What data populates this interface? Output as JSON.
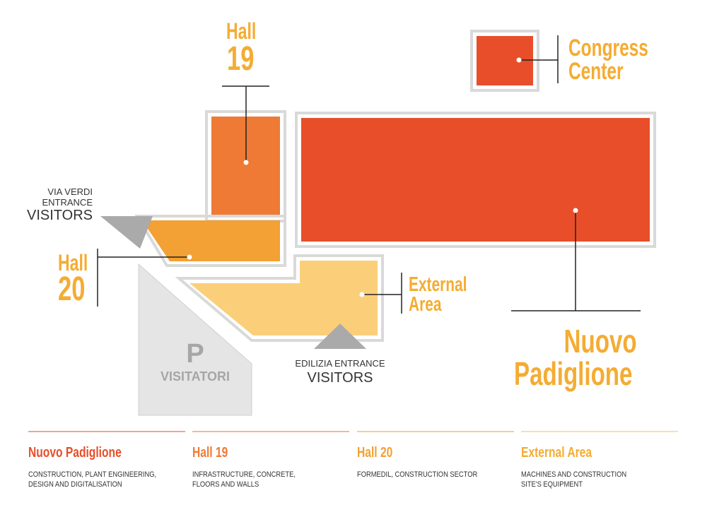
{
  "colors": {
    "nuovo": "#e84e2a",
    "hall19": "#ee7a35",
    "hall20": "#f3a034",
    "external": "#fbcf7a",
    "outline": "#d9d9d9",
    "parking": "#e5e5e5",
    "entrance": "#aaaaaa",
    "label_accent": "#f4ac32"
  },
  "map": {
    "hall19": {
      "line1": "Hall",
      "line2": "19"
    },
    "congress": {
      "line1": "Congress",
      "line2": "Center"
    },
    "hall20": {
      "line1": "Hall",
      "line2": "20"
    },
    "external": {
      "line1": "External",
      "line2": "Area"
    },
    "nuovo": {
      "line1": "Nuovo",
      "line2": "Padiglione"
    },
    "via_verdi": {
      "line1": "VIA VERDI",
      "line2": "ENTRANCE",
      "line3": "VISITORS"
    },
    "edilizia": {
      "line1": "EDILIZIA ENTRANCE",
      "line2": "VISITORS"
    },
    "parking": {
      "letter": "P",
      "name": "VISITATORI"
    }
  },
  "legend": [
    {
      "title": "Nuovo Padiglione",
      "desc1": "CONSTRUCTION, PLANT ENGINEERING,",
      "desc2": "DESIGN AND DIGITALISATION",
      "color": "#e84e2a",
      "rule": "#f2a491"
    },
    {
      "title": "Hall 19",
      "desc1": "INFRASTRUCTURE, CONCRETE,",
      "desc2": "FLOORS AND WALLS",
      "color": "#ee7a35",
      "rule": "#f6b792"
    },
    {
      "title": "Hall 20",
      "desc1": "FORMEDIL, CONSTRUCTION SECTOR",
      "desc2": "",
      "color": "#f3a034",
      "rule": "#f8cd92"
    },
    {
      "title": "External Area",
      "desc1": "MACHINES AND CONSTRUCTION",
      "desc2": "SITE'S EQUIPMENT",
      "color": "#f4ac32",
      "rule": "#fbe0a8"
    }
  ]
}
